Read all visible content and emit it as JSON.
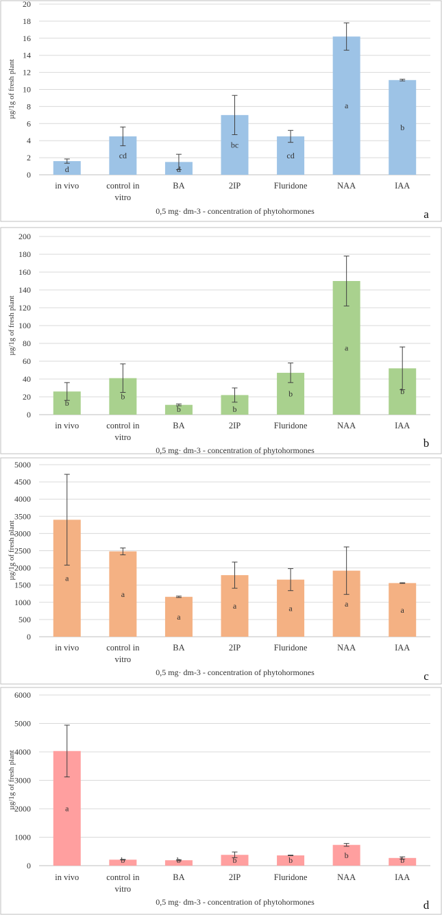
{
  "chart_data": [
    {
      "type": "bar",
      "panel": "a",
      "categories": [
        "in vivo",
        "control in vitro",
        "BA",
        "2IP",
        "Fluridone",
        "NAA",
        "IAA"
      ],
      "values": [
        1.6,
        4.5,
        1.5,
        7.0,
        4.5,
        16.2,
        11.1
      ],
      "errors": [
        0.25,
        1.1,
        0.9,
        2.3,
        0.7,
        1.6,
        0.1
      ],
      "significance": [
        "d",
        "cd",
        "d",
        "bc",
        "cd",
        "a",
        "b"
      ],
      "color": "#9dc3e6",
      "ylim": [
        0,
        20
      ],
      "yticks": [
        0,
        2,
        4,
        6,
        8,
        10,
        12,
        14,
        16,
        18,
        20
      ],
      "ylabel": "µg/1g  of fresh plant",
      "xlabel": "0,5 mg· dm-3  - concentration  of phytohormones",
      "letter": "a"
    },
    {
      "type": "bar",
      "panel": "b",
      "categories": [
        "in vivo",
        "control in vitro",
        "BA",
        "2IP",
        "Fluridone",
        "NAA",
        "IAA"
      ],
      "values": [
        26,
        41,
        11,
        22,
        47,
        150,
        52
      ],
      "errors": [
        10,
        16,
        1,
        8,
        11,
        28,
        24
      ],
      "significance": [
        "b",
        "b",
        "b",
        "b",
        "b",
        "a",
        "b"
      ],
      "color": "#a9d18e",
      "ylim": [
        0,
        200
      ],
      "yticks": [
        0,
        20,
        40,
        60,
        80,
        100,
        120,
        140,
        160,
        180,
        200
      ],
      "ylabel": "µg/1g  of fresh plant",
      "xlabel": "0,5 mg· dm-3  - concentration  of phytohormones",
      "letter": "b"
    },
    {
      "type": "bar",
      "panel": "c",
      "categories": [
        "in vivo",
        "control in vitro",
        "BA",
        "2IP",
        "Fluridone",
        "NAA",
        "IAA"
      ],
      "values": [
        3400,
        2480,
        1160,
        1790,
        1660,
        1920,
        1560
      ],
      "errors": [
        1320,
        100,
        20,
        380,
        320,
        690,
        10
      ],
      "significance": [
        "a",
        "a",
        "a",
        "a",
        "a",
        "a",
        "a"
      ],
      "color": "#f4b183",
      "ylim": [
        0,
        5000
      ],
      "yticks": [
        0,
        500,
        1000,
        1500,
        2000,
        2500,
        3000,
        3500,
        4000,
        4500,
        5000
      ],
      "ylabel": "µg/1g  of fresh plant",
      "xlabel": "0,5 mg· dm-3  - concentration  of phytohormones",
      "letter": "c"
    },
    {
      "type": "bar",
      "panel": "d",
      "categories": [
        "in vivo",
        "control in vitro",
        "BA",
        "2IP",
        "Fluridone",
        "NAA",
        "IAA"
      ],
      "values": [
        4030,
        210,
        190,
        380,
        360,
        730,
        270
      ],
      "errors": [
        910,
        10,
        20,
        100,
        10,
        50,
        40
      ],
      "significance": [
        "a",
        "b",
        "b",
        "b",
        "b",
        "b",
        "b"
      ],
      "color": "#ff9f9f",
      "ylim": [
        0,
        6000
      ],
      "yticks": [
        0,
        1000,
        2000,
        3000,
        4000,
        5000,
        6000
      ],
      "ylabel": "µg/1g  of fresh plant",
      "xlabel": "0,5 mg· dm-3  - concentration  of phytohormones",
      "letter": "d"
    }
  ]
}
